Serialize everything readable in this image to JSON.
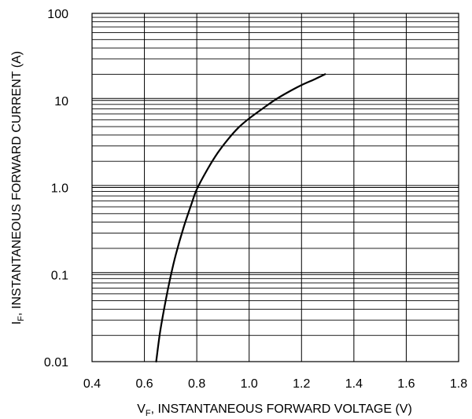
{
  "chart_data": {
    "type": "line",
    "title": "",
    "xlabel": {
      "main": "V",
      "sub": "F",
      "rest": ", INSTANTANEOUS FORWARD VOLTAGE (V)"
    },
    "ylabel": {
      "main": "I",
      "sub": "F",
      "rest": ", INSTANTANEOUS FORWARD CURRENT (A)"
    },
    "xlim": [
      0.4,
      1.8
    ],
    "ylim": [
      0.01,
      100
    ],
    "yscale": "log",
    "grid": true,
    "x_ticks": [
      "0.4",
      "0.6",
      "0.8",
      "1.0",
      "1.2",
      "1.4",
      "1.6",
      "1.8"
    ],
    "y_ticks": [
      "0.01",
      "0.1",
      "1.0",
      "10",
      "100"
    ],
    "series": [
      {
        "color": "#000000",
        "x": [
          0.645,
          0.66,
          0.68,
          0.7,
          0.72,
          0.75,
          0.78,
          0.8,
          0.84,
          0.88,
          0.92,
          0.96,
          1.0,
          1.05,
          1.1,
          1.15,
          1.2,
          1.25,
          1.29
        ],
        "y": [
          0.01,
          0.022,
          0.048,
          0.095,
          0.17,
          0.35,
          0.65,
          0.95,
          1.6,
          2.5,
          3.6,
          4.9,
          6.2,
          8.0,
          10.2,
          12.5,
          15.0,
          17.5,
          20.0
        ]
      }
    ]
  }
}
